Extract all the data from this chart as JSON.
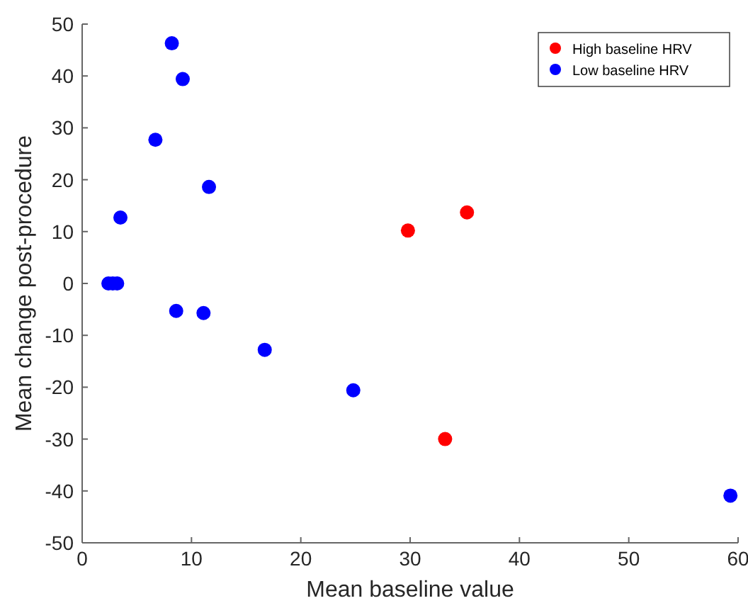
{
  "chart_data": {
    "type": "scatter",
    "xlabel": "Mean baseline value",
    "ylabel": "Mean change post-procedure",
    "xlim": [
      0,
      60
    ],
    "xticks": [
      0,
      10,
      20,
      30,
      40,
      50,
      60
    ],
    "ylim": [
      -50,
      50
    ],
    "yticks": [
      -50,
      -40,
      -30,
      -20,
      -10,
      0,
      10,
      20,
      30,
      40,
      50
    ],
    "marker": "circle",
    "legend": "top right",
    "grid": false,
    "series": [
      {
        "name": "High baseline HRV",
        "color": "#ff0000",
        "x": [
          29.8,
          35.2,
          33.2
        ],
        "values": [
          10.2,
          13.7,
          -30.0
        ]
      },
      {
        "name": "Low baseline HRV",
        "color": "#0000ff",
        "x": [
          8.2,
          9.2,
          6.7,
          11.6,
          3.5,
          2.4,
          2.8,
          3.2,
          8.6,
          11.1,
          16.7,
          24.8,
          59.3
        ],
        "values": [
          46.3,
          39.4,
          27.7,
          18.6,
          12.7,
          0,
          0,
          0,
          -5.3,
          -5.7,
          -12.8,
          -20.6,
          -40.9
        ]
      }
    ]
  }
}
